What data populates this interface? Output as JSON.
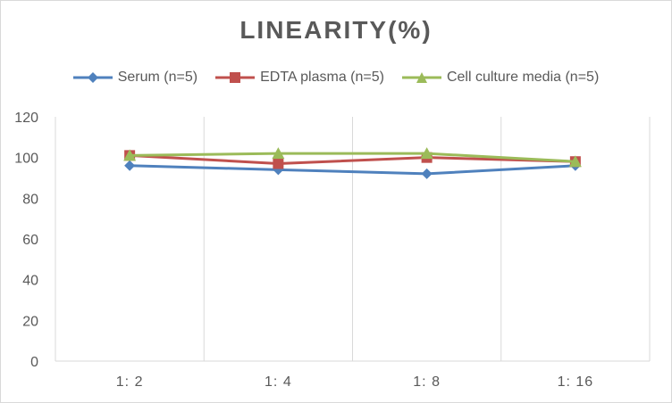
{
  "chart_data": {
    "type": "line",
    "title": "LINEARITY(%)",
    "xlabel": "",
    "ylabel": "",
    "categories": [
      "1:2",
      "1:4",
      "1:8",
      "1:16"
    ],
    "ylim": [
      0,
      120
    ],
    "yticks": [
      0,
      20,
      40,
      60,
      80,
      100,
      120
    ],
    "grid": "vertical",
    "legend": "top",
    "series": [
      {
        "name": "Serum (n=5)",
        "values": [
          96,
          94,
          92,
          96
        ],
        "color": "#4f81bd",
        "marker": "diamond"
      },
      {
        "name": "EDTA plasma (n=5)",
        "values": [
          101,
          97,
          100,
          98
        ],
        "color": "#c0504d",
        "marker": "square"
      },
      {
        "name": "Cell culture media (n=5)",
        "values": [
          101,
          102,
          102,
          98
        ],
        "color": "#9bbb59",
        "marker": "triangle"
      }
    ]
  }
}
